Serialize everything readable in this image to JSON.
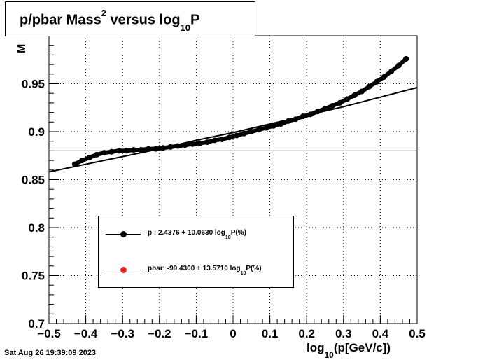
{
  "title": {
    "prefix": "p/pbar Mass",
    "sup": "2",
    "middle": " versus log",
    "sub": "10",
    "suffix": "P"
  },
  "footer": {
    "timestamp": "Sat Aug 26 19:39:09 2023"
  },
  "xlabel": {
    "prefix": "log",
    "sub": "10",
    "suffix": "(p[GeV/c])"
  },
  "ylabel_fragment": "M",
  "legend": [
    {
      "name": "p",
      "prefix": "p   : 2.4376 + 10.0630 log",
      "sub": "10",
      "suffix": "P(%)",
      "color": "#000000"
    },
    {
      "name": "pbar",
      "prefix": "pbar: -99.4300 + 13.5710 log",
      "sub": "10",
      "suffix": "P(%)",
      "color": "#e02020"
    }
  ],
  "chart_data": {
    "type": "scatter",
    "title": "p/pbar Mass^2 versus log10P",
    "xlabel": "log10(p[GeV/c])",
    "ylabel": "M",
    "xlim": [
      -0.5,
      0.5
    ],
    "ylim": [
      0.7,
      1.0
    ],
    "grid": true,
    "x_ticks": [
      "−0.5",
      "−0.4",
      "−0.3",
      "−0.2",
      "−0.1",
      "0",
      "0.1",
      "0.2",
      "0.3",
      "0.4",
      "0.5"
    ],
    "y_ticks": [
      "0.7",
      "0.75",
      "0.8",
      "0.85",
      "0.9",
      "0.95"
    ],
    "reference_line_y": 0.88,
    "series": [
      {
        "name": "p",
        "color": "#000000",
        "x": [
          -0.43,
          -0.41,
          -0.39,
          -0.37,
          -0.35,
          -0.33,
          -0.31,
          -0.29,
          -0.27,
          -0.25,
          -0.23,
          -0.21,
          -0.19,
          -0.17,
          -0.15,
          -0.13,
          -0.11,
          -0.09,
          -0.07,
          -0.05,
          -0.03,
          -0.01,
          0.01,
          0.03,
          0.05,
          0.07,
          0.09,
          0.11,
          0.13,
          0.15,
          0.17,
          0.19,
          0.21,
          0.23,
          0.25,
          0.27,
          0.29,
          0.31,
          0.33,
          0.35,
          0.37,
          0.39,
          0.41,
          0.43,
          0.45,
          0.47
        ],
        "y": [
          0.866,
          0.87,
          0.873,
          0.876,
          0.878,
          0.879,
          0.88,
          0.88,
          0.881,
          0.881,
          0.882,
          0.882,
          0.883,
          0.884,
          0.885,
          0.886,
          0.887,
          0.888,
          0.889,
          0.891,
          0.892,
          0.894,
          0.896,
          0.898,
          0.9,
          0.902,
          0.904,
          0.906,
          0.908,
          0.911,
          0.913,
          0.916,
          0.918,
          0.921,
          0.924,
          0.927,
          0.93,
          0.934,
          0.938,
          0.942,
          0.947,
          0.952,
          0.957,
          0.963,
          0.969,
          0.976
        ]
      },
      {
        "name": "fit",
        "color": "#000000",
        "x": [
          -0.5,
          -0.4,
          -0.3,
          -0.2,
          -0.1,
          0,
          0.1,
          0.2,
          0.3,
          0.4,
          0.5
        ],
        "y": [
          0.858,
          0.866,
          0.874,
          0.882,
          0.891,
          0.899,
          0.908,
          0.917,
          0.926,
          0.936,
          0.946
        ]
      }
    ]
  }
}
